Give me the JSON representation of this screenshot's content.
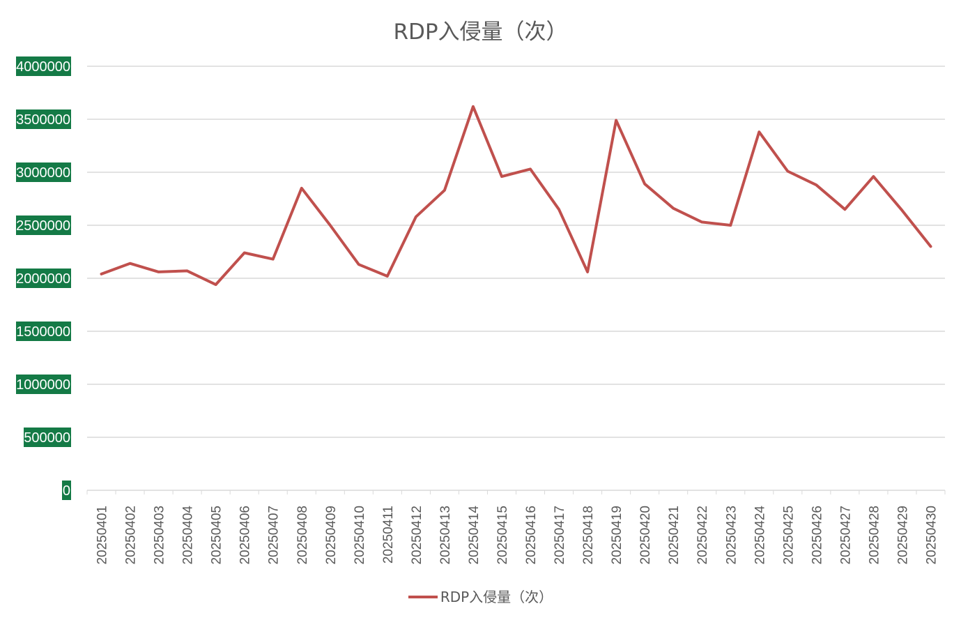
{
  "chart_data": {
    "type": "line",
    "title": "RDP入侵量（次）",
    "xlabel": "",
    "ylabel": "",
    "ylim": [
      0,
      4000000
    ],
    "yticks": [
      "0",
      "500000",
      "1000000",
      "1500000",
      "2000000",
      "2500000",
      "3000000",
      "3500000",
      "4000000"
    ],
    "grid": true,
    "legend_position": "bottom",
    "categories": [
      "20250401",
      "20250402",
      "20250403",
      "20250404",
      "20250405",
      "20250406",
      "20250407",
      "20250408",
      "20250409",
      "20250410",
      "20250411",
      "20250412",
      "20250413",
      "20250414",
      "20250415",
      "20250416",
      "20250417",
      "20250418",
      "20250419",
      "20250420",
      "20250421",
      "20250422",
      "20250423",
      "20250424",
      "20250425",
      "20250426",
      "20250427",
      "20250428",
      "20250429",
      "20250430"
    ],
    "series": [
      {
        "name": "RDP入侵量（次）",
        "color": "#c0504d",
        "values": [
          2040000,
          2140000,
          2060000,
          2070000,
          1940000,
          2240000,
          2180000,
          2850000,
          2500000,
          2130000,
          2020000,
          2580000,
          2830000,
          3620000,
          2960000,
          3030000,
          2650000,
          2060000,
          3490000,
          2890000,
          2660000,
          2530000,
          2500000,
          3380000,
          3010000,
          2880000,
          2650000,
          2960000,
          2640000,
          2300000
        ]
      }
    ]
  }
}
